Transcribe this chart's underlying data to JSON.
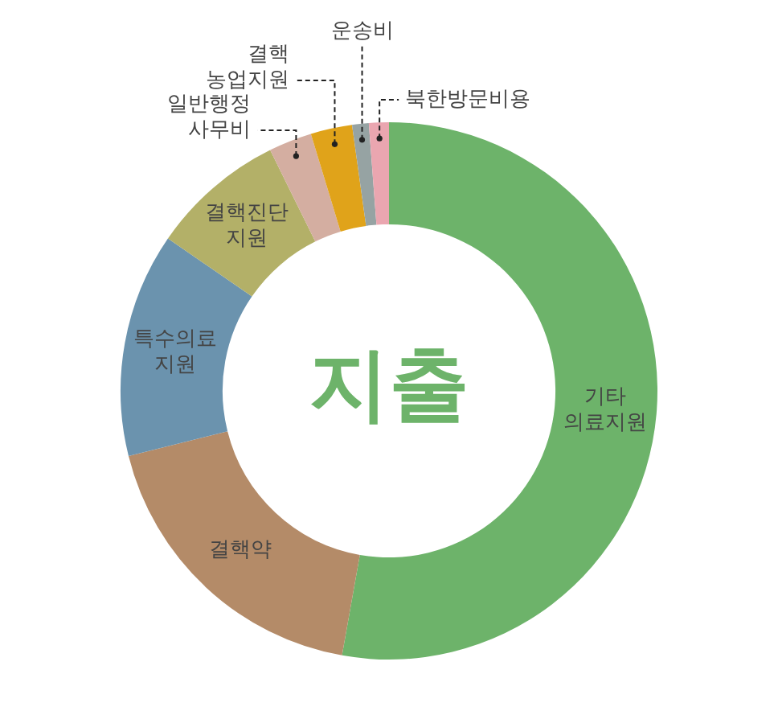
{
  "chart_data": {
    "type": "donut",
    "title": "지출",
    "categories": [
      "기타 의료지원",
      "결핵약",
      "특수의료 지원",
      "결핵진단 지원",
      "일반행정 사무비",
      "결핵 농업지원",
      "운송비",
      "북한방문비용"
    ],
    "values": [
      52.8,
      18.3,
      13.5,
      8.1,
      2.6,
      2.5,
      1.0,
      1.2
    ],
    "colors": [
      "#6db36a",
      "#b48b68",
      "#6b93ae",
      "#b3b068",
      "#d4aea1",
      "#e0a31a",
      "#96a3a3",
      "#eaa6b0"
    ],
    "legend": false
  }
}
